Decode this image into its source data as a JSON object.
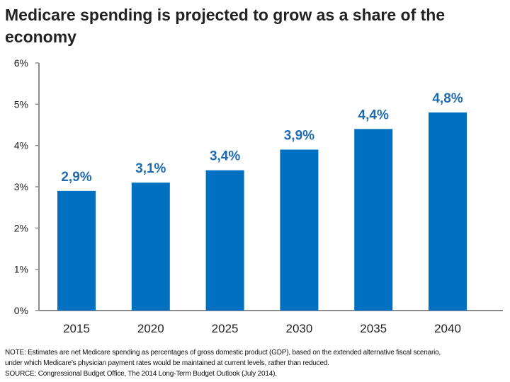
{
  "chart_data": {
    "type": "bar",
    "title": "Medicare spending is projected to grow as a share of the economy",
    "categories": [
      "2015",
      "2020",
      "2025",
      "2030",
      "2035",
      "2040"
    ],
    "values": [
      2.9,
      3.1,
      3.4,
      3.9,
      4.4,
      4.8
    ],
    "data_labels": [
      "2,9%",
      "3,1%",
      "3,4%",
      "3,9%",
      "4,4%",
      "4,8%"
    ],
    "y_ticks": [
      "0%",
      "1%",
      "2%",
      "3%",
      "4%",
      "5%",
      "6%"
    ],
    "ylim": [
      0,
      6
    ],
    "xlabel": "",
    "ylabel": "",
    "grid": false,
    "colors": {
      "bar": "#0070C0",
      "label": "#1F6BB0",
      "axis": "#8C8C8C"
    }
  },
  "notes": {
    "note_line1": "NOTE: Estimates are net Medicare spending as percentages of gross domestic product (GDP), based on the extended alternative fiscal scenario,",
    "note_line2": "under which Medicare’s physician payment rates would be maintained at current levels, rather than reduced.",
    "source": "SOURCE: Congressional Budget Office, The 2014 Long-Term Budget Outlook (July 2014)."
  }
}
